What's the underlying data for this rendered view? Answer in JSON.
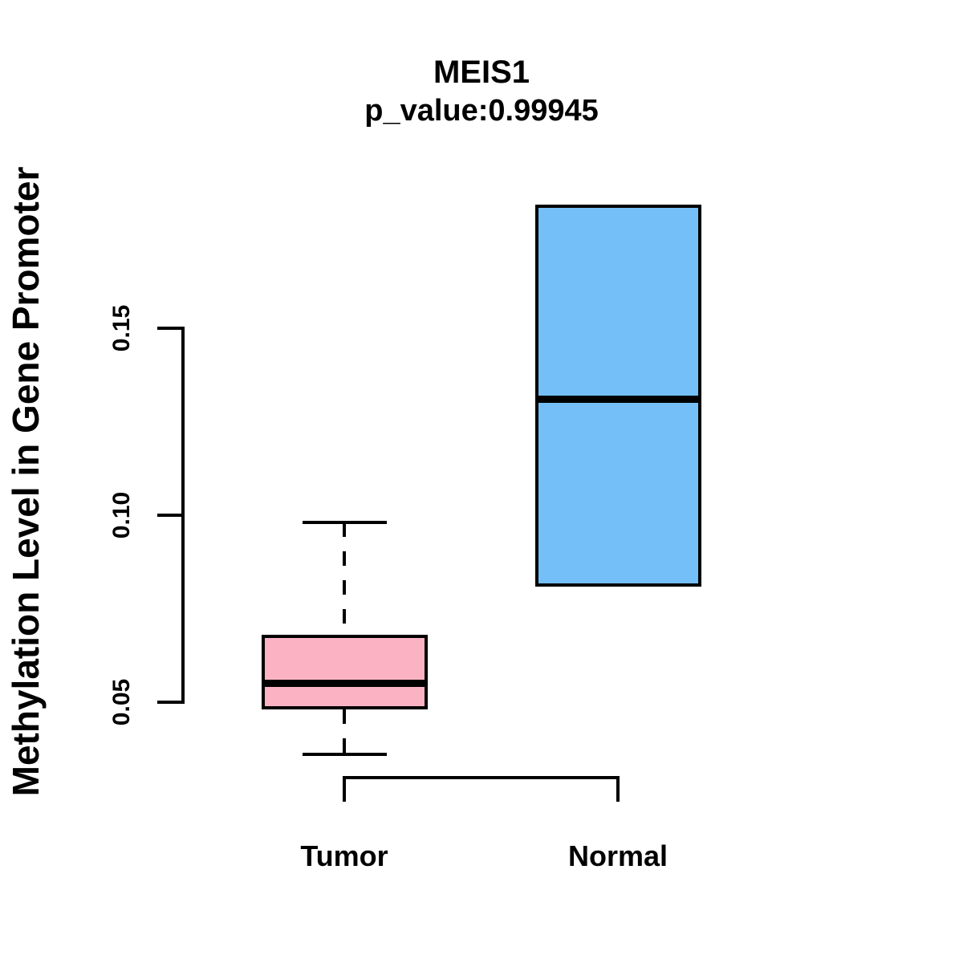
{
  "title": {
    "line1": "MEIS1",
    "line2": "p_value:0.99945"
  },
  "axes": {
    "y": {
      "label": "Methylation Level in Gene Promoter",
      "tick_labels": [
        "0.05",
        "0.10",
        "0.15"
      ],
      "tick_values": [
        0.05,
        0.1,
        0.15
      ]
    },
    "x": {
      "categories": [
        "Tumor",
        "Normal"
      ]
    }
  },
  "chart_data": {
    "type": "boxplot",
    "title": "MEIS1",
    "subtitle": "p_value:0.99945",
    "gene": "MEIS1",
    "p_value": "0.99945",
    "ylabel": "Methylation Level in Gene Promoter",
    "xlabel": "",
    "categories": [
      "Tumor",
      "Normal"
    ],
    "y_ticks": [
      0.05,
      0.1,
      0.15
    ],
    "ylim": [
      0.03,
      0.19
    ],
    "grid": false,
    "legend": "none",
    "groups": [
      {
        "name": "Tumor",
        "color": "#fbb3c4",
        "stats": {
          "whisker_low": 0.036,
          "q1": 0.048,
          "median": 0.055,
          "q3": 0.068,
          "whisker_high": 0.098
        },
        "has_whiskers": true
      },
      {
        "name": "Normal",
        "color": "#74bff8",
        "stats": {
          "whisker_low": 0.081,
          "q1": 0.081,
          "median": 0.131,
          "q3": 0.183,
          "whisker_high": 0.183
        },
        "has_whiskers": false
      }
    ]
  },
  "colors": {
    "tumor_box": "#fbb3c4",
    "normal_box": "#74bff8",
    "line": "#000000",
    "background": "#ffffff"
  }
}
